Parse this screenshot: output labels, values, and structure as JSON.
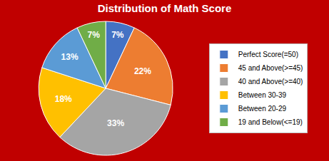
{
  "chart_data": {
    "type": "pie",
    "title": "Distribution of Math Score",
    "categories": [
      "Perfect Score(=50)",
      "45 and Above(>=45)",
      "40 and Above(>=40)",
      "Between 30-39",
      "Between 20-29",
      "19 and Below(<=19)"
    ],
    "values": [
      7,
      22,
      33,
      18,
      13,
      7
    ],
    "value_labels": [
      "7%",
      "22%",
      "33%",
      "18%",
      "13%",
      "7%"
    ],
    "colors": [
      "#4472c4",
      "#ed7d31",
      "#a5a5a5",
      "#ffc000",
      "#5b9bd5",
      "#70ad47"
    ],
    "data_labels": true,
    "legend": "right"
  }
}
